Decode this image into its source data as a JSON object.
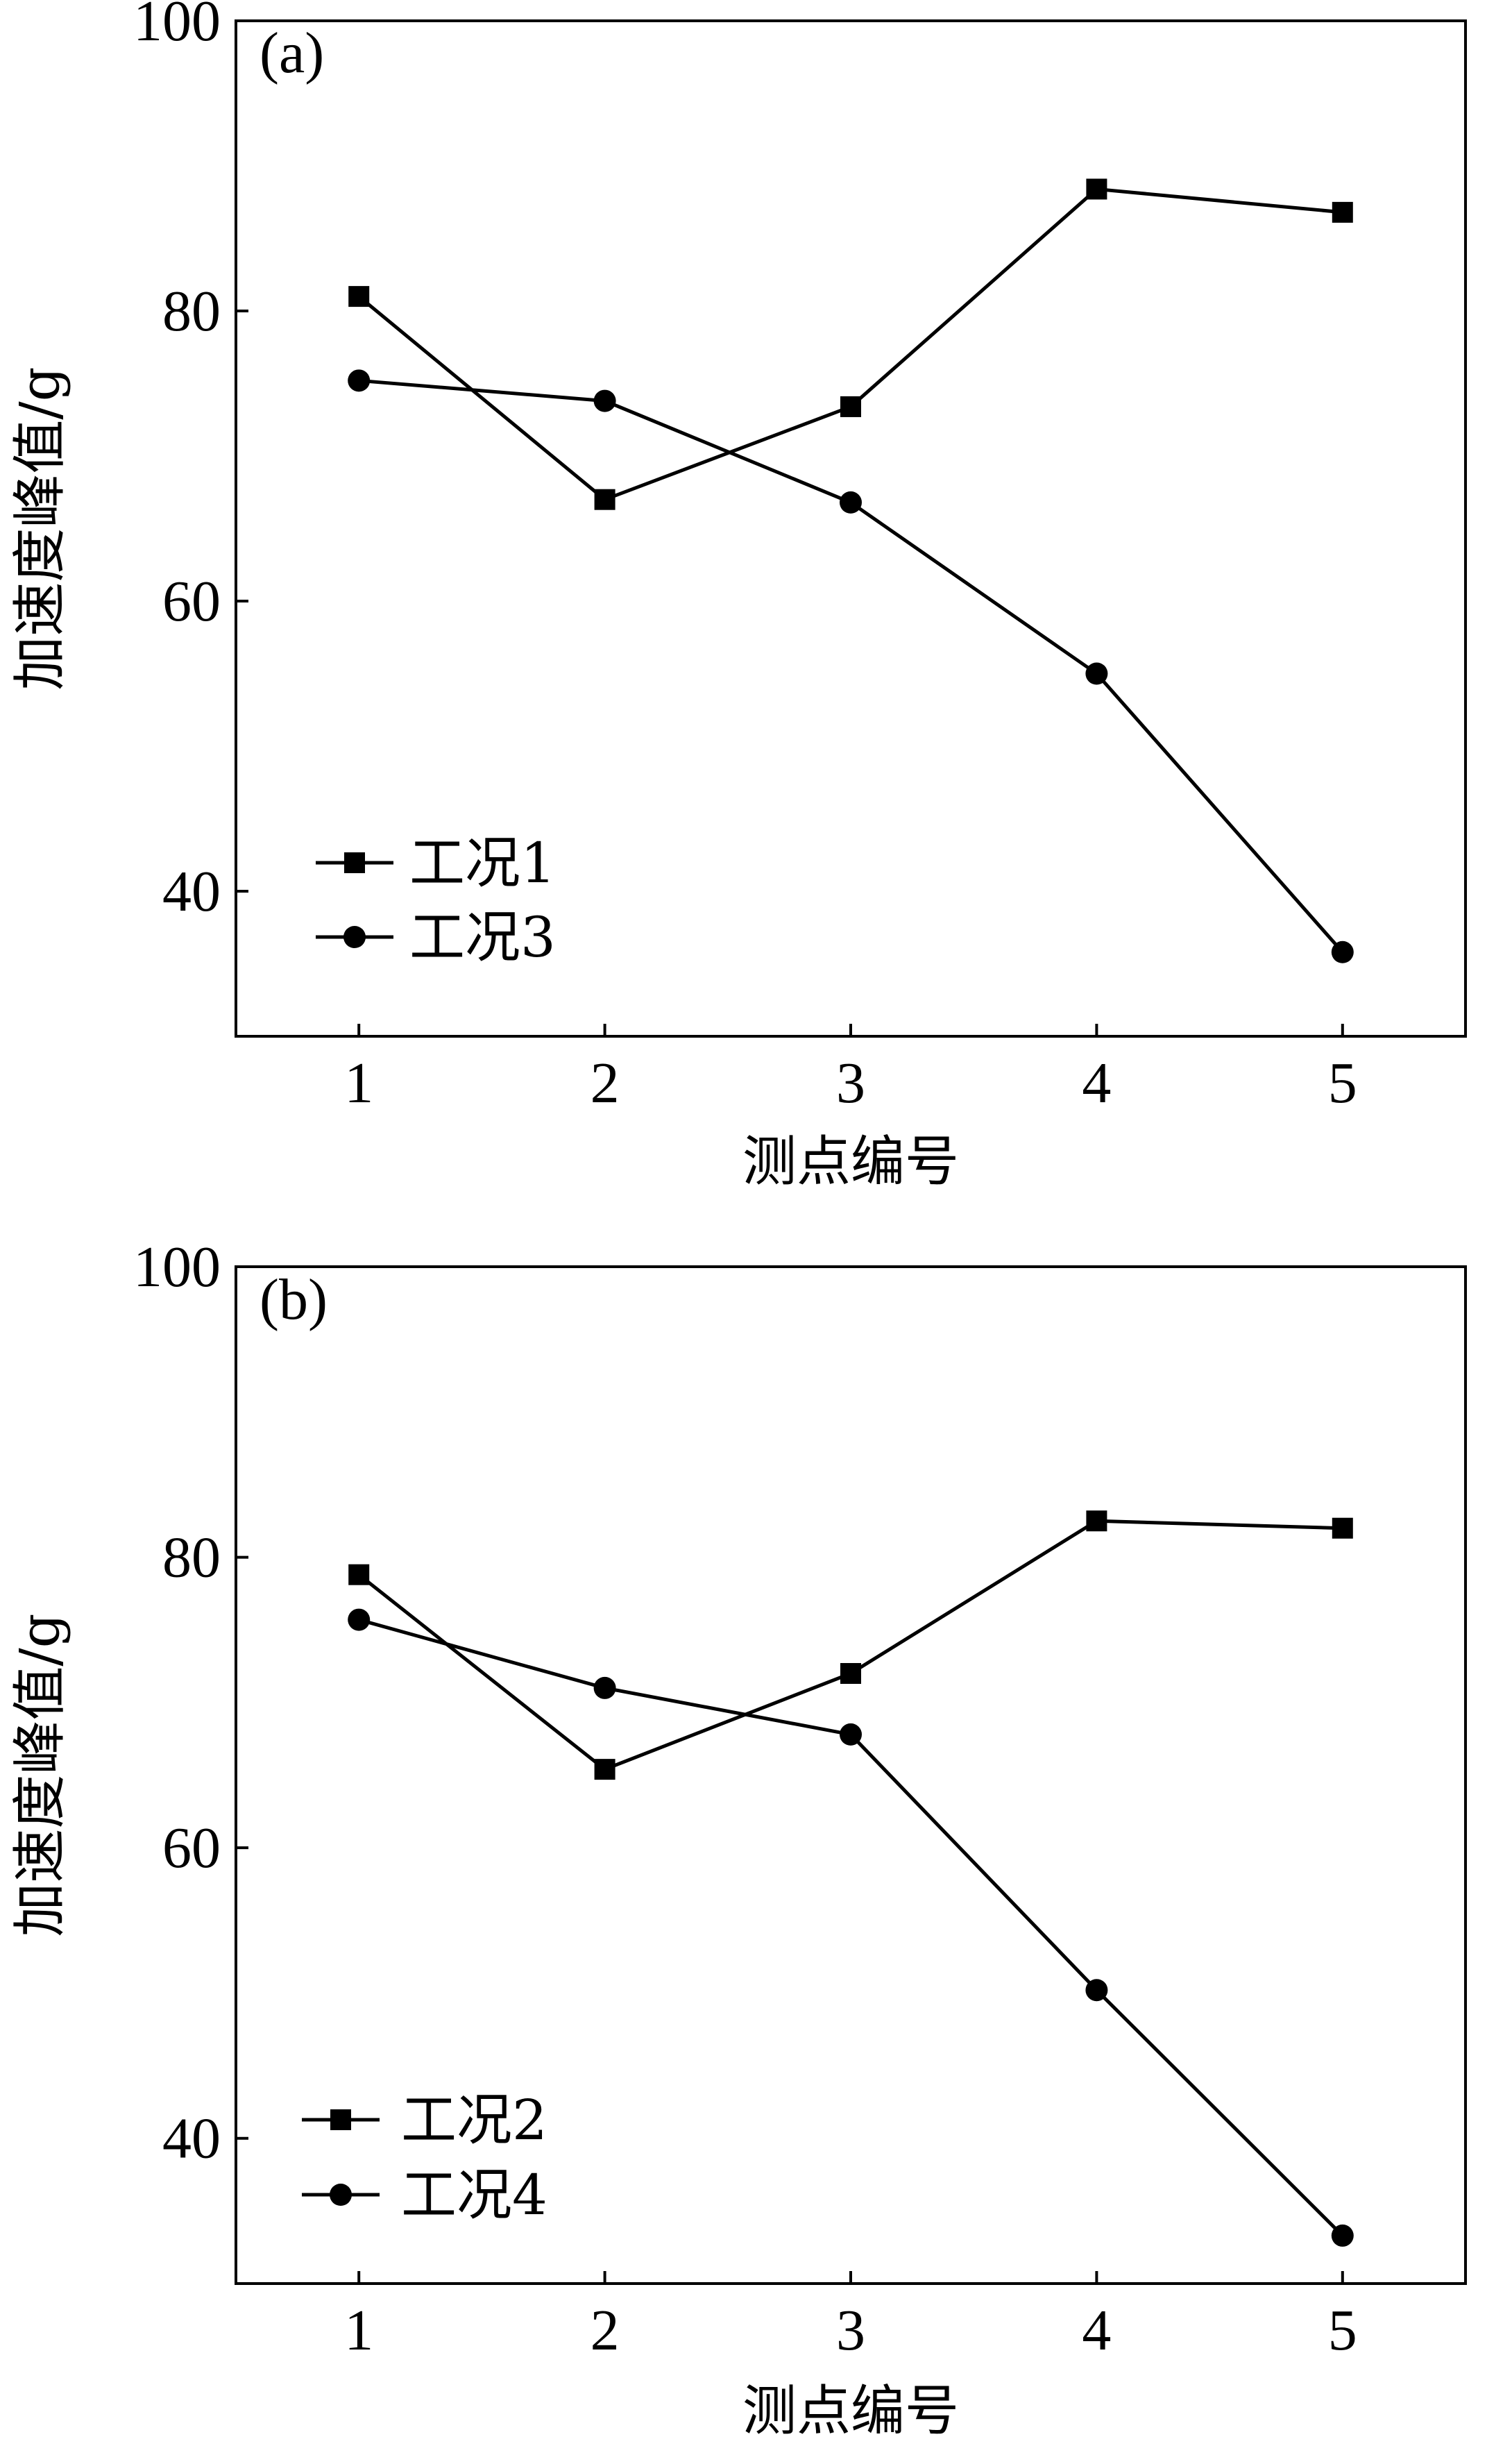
{
  "chart_data": [
    {
      "type": "line",
      "panel_label": "(a)",
      "xlabel": "测点编号",
      "ylabel": "加速度峰值/g",
      "categories": [
        "1",
        "2",
        "3",
        "4",
        "5"
      ],
      "x": [
        1,
        2,
        3,
        4,
        5
      ],
      "xlim": [
        0.5,
        5.5
      ],
      "ylim": [
        30,
        100
      ],
      "yticks": [
        40,
        60,
        80,
        100
      ],
      "grid": false,
      "legend_position": "bottom-left",
      "series": [
        {
          "name": "工况1",
          "marker": "square",
          "values": [
            81,
            67,
            73.4,
            88.4,
            86.8
          ]
        },
        {
          "name": "工况3",
          "marker": "circle",
          "values": [
            75.2,
            73.8,
            66.8,
            55,
            35.8
          ]
        }
      ]
    },
    {
      "type": "line",
      "panel_label": "(b)",
      "xlabel": "测点编号",
      "ylabel": "加速度峰值/g",
      "categories": [
        "1",
        "2",
        "3",
        "4",
        "5"
      ],
      "x": [
        1,
        2,
        3,
        4,
        5
      ],
      "xlim": [
        0.5,
        5.5
      ],
      "ylim": [
        30,
        100
      ],
      "yticks": [
        40,
        60,
        80,
        100
      ],
      "grid": false,
      "legend_position": "bottom-left",
      "series": [
        {
          "name": "工况2",
          "marker": "square",
          "values": [
            78.8,
            65.4,
            72,
            82.5,
            82
          ]
        },
        {
          "name": "工况4",
          "marker": "circle",
          "values": [
            75.7,
            71,
            67.8,
            50.2,
            33.3
          ]
        }
      ]
    }
  ],
  "colors": {
    "line": "#000000",
    "background": "#ffffff"
  }
}
